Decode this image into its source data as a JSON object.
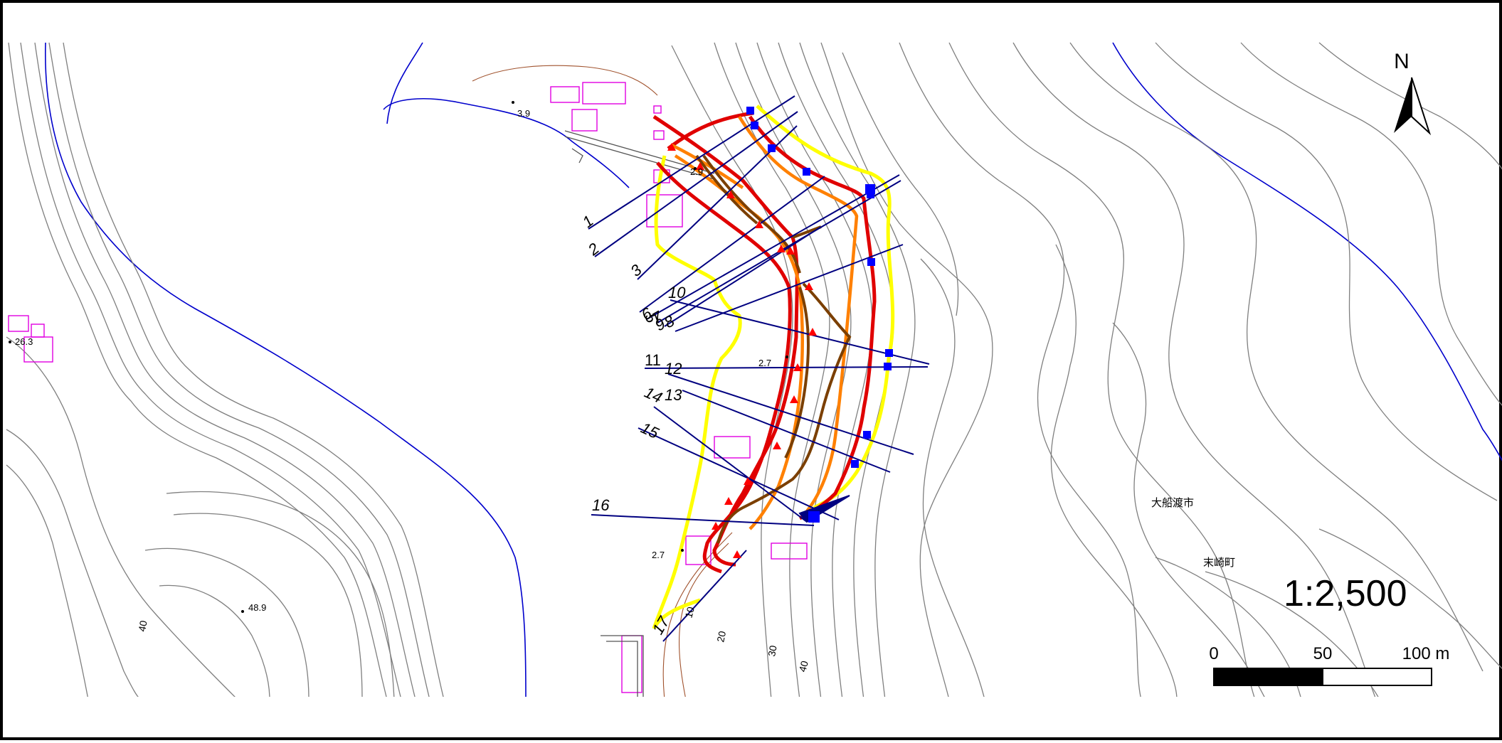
{
  "map": {
    "north_label": "N",
    "scale_text": "1:2,500",
    "scale_bar": {
      "labels": [
        "0",
        "50",
        "100 m"
      ]
    },
    "place_names": [
      "大船渡市",
      "末崎町"
    ],
    "spot_heights": [
      "3.9",
      "2.9",
      "26.3",
      "2.7",
      "2.7",
      "48.9"
    ],
    "contour_labels": [
      "40",
      "10",
      "20",
      "30",
      "40"
    ],
    "transect_labels": [
      "1",
      "2",
      "3",
      "10",
      "5",
      "6",
      "7",
      "8",
      "9",
      "11",
      "12",
      "13",
      "14",
      "15",
      "16",
      "17"
    ],
    "colors": {
      "contour": "#7f7f7f",
      "coastline": "#0000cc",
      "building": "#e000e0",
      "transect": "#000080",
      "yellow_line": "#ffff00",
      "red_line": "#e00000",
      "orange_line": "#ff8000",
      "brown_line": "#7b3f00",
      "marker_square": "#0000ff",
      "marker_triangle": "#ff0000"
    }
  }
}
